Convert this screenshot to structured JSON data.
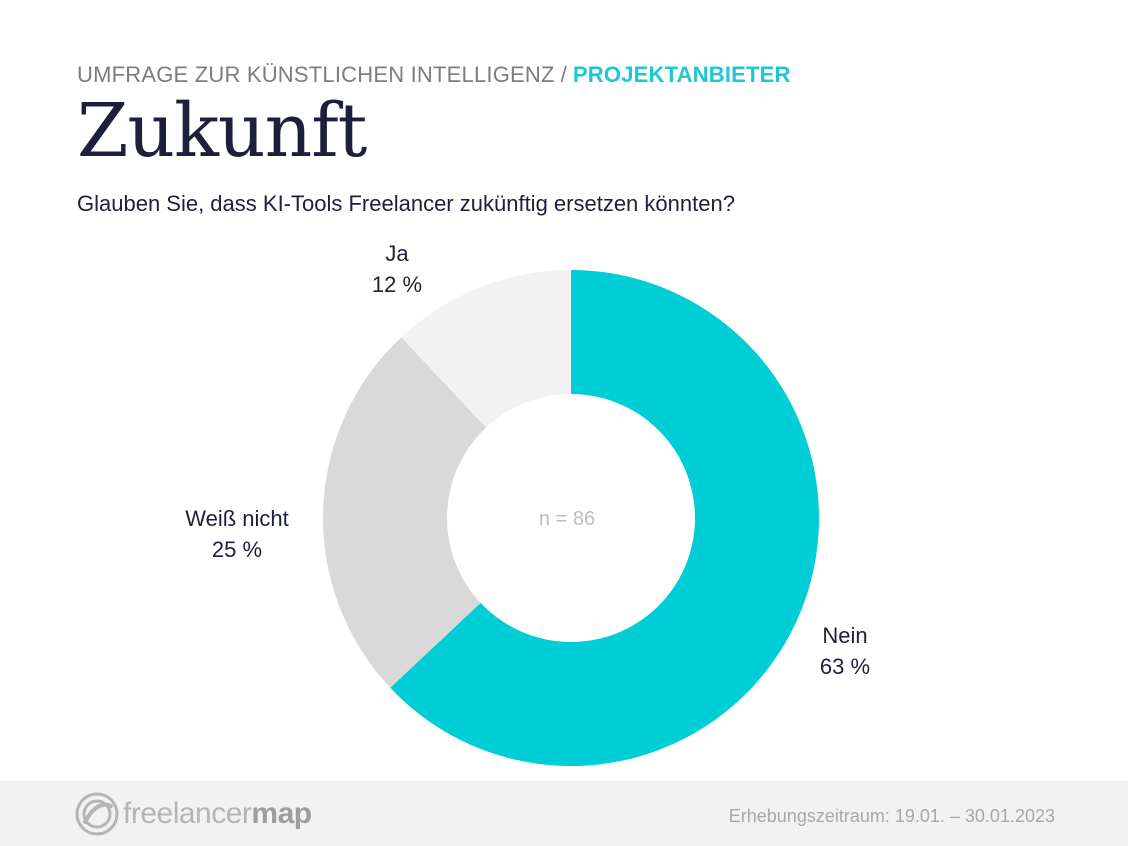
{
  "header": {
    "kicker_main": "UMFRAGE ZUR KÜNSTLICHEN INTELLIGENZ",
    "kicker_separator": "/",
    "kicker_accent": "PROJEKTANBIETER",
    "title": "Zukunft",
    "question": "Glauben Sie, dass KI-Tools Freelancer zukünftig ersetzen könnten?"
  },
  "colors": {
    "accent": "#00ced6",
    "ja": "#f2f2f2",
    "weiss_nicht": "#d9d9d9",
    "title": "#1e1f3b",
    "kicker_accent": "#1ec8d2"
  },
  "chart_data": {
    "type": "pie",
    "center_label": "n = 86",
    "slices": [
      {
        "label": "Nein",
        "value": 63,
        "display": "63 %",
        "color": "#00ced6"
      },
      {
        "label": "Weiß nicht",
        "value": 25,
        "display": "25 %",
        "color": "#d9d9d9"
      },
      {
        "label": "Ja",
        "value": 12,
        "display": "12 %",
        "color": "#f2f2f2"
      }
    ]
  },
  "footer": {
    "logo_text_light": "freelancer",
    "logo_text_bold": "map",
    "logo_icon": "freelancermap-logo-icon",
    "period": "Erhebungszeitraum:  19.01. – 30.01.2023"
  }
}
